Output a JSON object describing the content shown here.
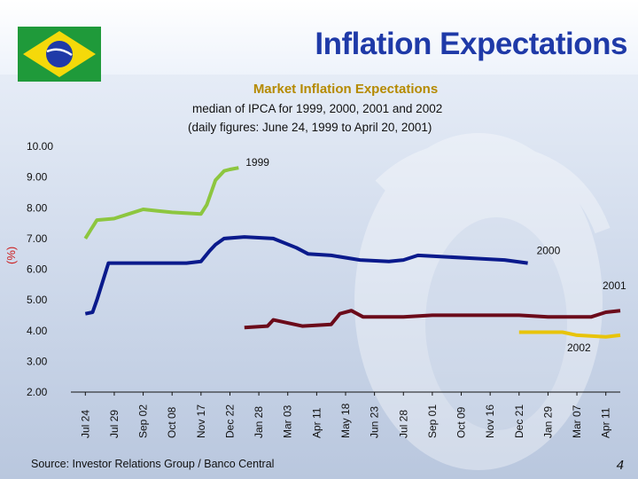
{
  "slide": {
    "title": "Inflation Expectations",
    "subtitle": "Market Inflation Expectations",
    "desc_line1": "median of IPCA for 1999, 2000, 2001 and 2002",
    "desc_line2": "(daily figures: June 24, 1999 to April 20, 2001)",
    "source": "Source: Investor Relations Group / Banco Central",
    "page_number": "4"
  },
  "colors": {
    "title": "#1f3aa8",
    "subtitle": "#b58a00",
    "s1999": "#8dc63f",
    "s2000": "#0a1a8c",
    "s2001": "#6b0a1a",
    "s2002": "#e8c40a"
  },
  "chart_data": {
    "type": "line",
    "title": "Market Inflation Expectations",
    "ylabel": "(%)",
    "ylim": [
      2.0,
      10.0
    ],
    "yticks": [
      "10.00",
      "9.00",
      "8.00",
      "7.00",
      "6.00",
      "5.00",
      "4.00",
      "3.00",
      "2.00"
    ],
    "xcategories": [
      "Jul 24",
      "Jul 29",
      "Sep 02",
      "Oct 08",
      "Nov 17",
      "Dec 22",
      "Jan 28",
      "Mar 03",
      "Apr 11",
      "May 18",
      "Jun 23",
      "Jul 28",
      "Sep 01",
      "Oct 09",
      "Nov 16",
      "Dec 21",
      "Jan 29",
      "Mar 07",
      "Apr 11"
    ],
    "series": [
      {
        "name": "1999",
        "label": "1999",
        "points": [
          [
            0,
            7.0
          ],
          [
            0.2,
            7.3
          ],
          [
            0.4,
            7.6
          ],
          [
            1.0,
            7.65
          ],
          [
            1.5,
            7.8
          ],
          [
            2.0,
            7.95
          ],
          [
            2.5,
            7.9
          ],
          [
            3.0,
            7.85
          ],
          [
            4.0,
            7.8
          ],
          [
            4.2,
            8.1
          ],
          [
            4.5,
            8.9
          ],
          [
            4.8,
            9.2
          ],
          [
            5.0,
            9.25
          ],
          [
            5.3,
            9.3
          ]
        ]
      },
      {
        "name": "2000",
        "label": "2000",
        "points": [
          [
            0,
            4.55
          ],
          [
            0.25,
            4.6
          ],
          [
            0.4,
            5.0
          ],
          [
            0.6,
            5.6
          ],
          [
            0.8,
            6.2
          ],
          [
            1.5,
            6.2
          ],
          [
            2.5,
            6.2
          ],
          [
            3.5,
            6.2
          ],
          [
            4.0,
            6.25
          ],
          [
            4.3,
            6.6
          ],
          [
            4.5,
            6.8
          ],
          [
            4.8,
            7.0
          ],
          [
            5.5,
            7.05
          ],
          [
            6.5,
            7.0
          ],
          [
            7.3,
            6.7
          ],
          [
            7.7,
            6.5
          ],
          [
            8.5,
            6.45
          ],
          [
            9.5,
            6.3
          ],
          [
            10.5,
            6.25
          ],
          [
            11.0,
            6.3
          ],
          [
            11.5,
            6.45
          ],
          [
            12.5,
            6.4
          ],
          [
            13.5,
            6.35
          ],
          [
            14.5,
            6.3
          ],
          [
            15.3,
            6.2
          ]
        ]
      },
      {
        "name": "2001",
        "label": "2001",
        "points": [
          [
            5.5,
            4.1
          ],
          [
            6.3,
            4.15
          ],
          [
            6.5,
            4.35
          ],
          [
            7.0,
            4.25
          ],
          [
            7.5,
            4.15
          ],
          [
            8.5,
            4.2
          ],
          [
            8.8,
            4.55
          ],
          [
            9.2,
            4.65
          ],
          [
            9.6,
            4.45
          ],
          [
            11.0,
            4.45
          ],
          [
            12.0,
            4.5
          ],
          [
            13.0,
            4.5
          ],
          [
            15.0,
            4.5
          ],
          [
            16.0,
            4.45
          ],
          [
            17.5,
            4.45
          ],
          [
            18.0,
            4.6
          ],
          [
            18.5,
            4.65
          ]
        ]
      },
      {
        "name": "2002",
        "label": "2002",
        "points": [
          [
            15.0,
            3.95
          ],
          [
            16.5,
            3.95
          ],
          [
            17.0,
            3.85
          ],
          [
            18.0,
            3.8
          ],
          [
            18.5,
            3.85
          ]
        ]
      }
    ]
  }
}
